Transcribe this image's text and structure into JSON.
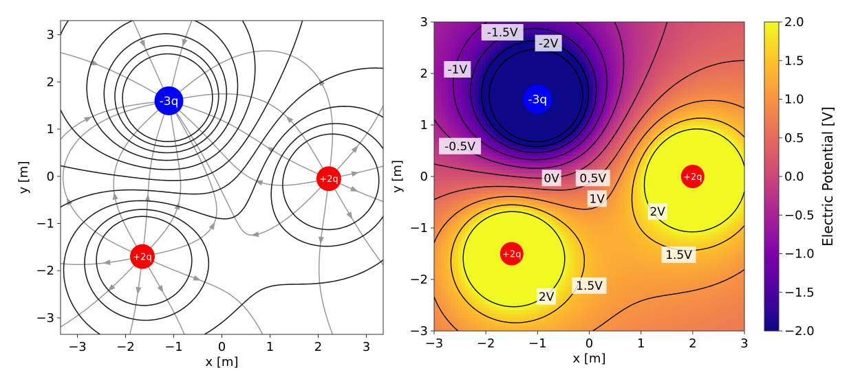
{
  "chart_data": [
    {
      "type": "streamplot+contour",
      "xlabel": "x [m]",
      "ylabel": "y [m]",
      "xlim": [
        -3.35,
        3.35
      ],
      "ylim": [
        -3.35,
        3.3
      ],
      "xticks": [
        -3,
        -2,
        -1,
        0,
        1,
        2,
        3
      ],
      "yticks": [
        -3,
        -2,
        -1,
        0,
        1,
        2,
        3
      ],
      "xtick_labels": [
        "−3",
        "−2",
        "−1",
        "0",
        "1",
        "2",
        "3"
      ],
      "ytick_labels": [
        "−3",
        "−2",
        "−1",
        "0",
        "1",
        "2",
        "3"
      ],
      "charges": [
        {
          "label": "-3q",
          "q": -3,
          "x": -1.1,
          "y": 1.6,
          "color": "#0000ff"
        },
        {
          "label": "+2q",
          "q": 2,
          "x": 2.22,
          "y": -0.05,
          "color": "#ff0000"
        },
        {
          "label": "+2q",
          "q": 2,
          "x": -1.65,
          "y": -1.7,
          "color": "#ff0000"
        }
      ],
      "contour_levels": [
        -2.5,
        -2,
        -1.5,
        -1,
        -0.5,
        0,
        0.5,
        1,
        1.5,
        2
      ],
      "contour_color": "#222222",
      "field_line_color": "#999999"
    },
    {
      "type": "heatmap+contour",
      "xlabel": "x [m]",
      "ylabel": "y [m]",
      "xlim": [
        -3,
        3
      ],
      "ylim": [
        -3,
        3
      ],
      "xticks": [
        -3,
        -2,
        -1,
        0,
        1,
        2,
        3
      ],
      "yticks": [
        -3,
        -2,
        -1,
        0,
        1,
        2,
        3
      ],
      "xtick_labels": [
        "−3",
        "−2",
        "−1",
        "0",
        "1",
        "2",
        "3"
      ],
      "ytick_labels": [
        "−3",
        "−2",
        "−1",
        "0",
        "1",
        "2",
        "3"
      ],
      "colormap": "plasma",
      "charges": [
        {
          "label": "-3q",
          "q": -3,
          "x": -1.0,
          "y": 1.5,
          "color": "#0000ff"
        },
        {
          "label": "+2q",
          "q": 2,
          "x": 2.0,
          "y": 0.0,
          "color": "#ff0000"
        },
        {
          "label": "+2q",
          "q": 2,
          "x": -1.5,
          "y": -1.5,
          "color": "#ff0000"
        }
      ],
      "contour_levels": [
        -2.5,
        -2,
        -1.5,
        -1,
        -0.5,
        0,
        0.5,
        1,
        1.5,
        2
      ],
      "contour_labels": [
        {
          "text": "-1.5V",
          "x": -1.68,
          "y": 2.8
        },
        {
          "text": "-2V",
          "x": -0.79,
          "y": 2.59
        },
        {
          "text": "-1V",
          "x": -2.55,
          "y": 2.08
        },
        {
          "text": "-0.5V",
          "x": -2.5,
          "y": 0.59
        },
        {
          "text": "0V",
          "x": -0.73,
          "y": -0.03
        },
        {
          "text": "0.5V",
          "x": 0.07,
          "y": -0.03
        },
        {
          "text": "1V",
          "x": 0.15,
          "y": -0.43
        },
        {
          "text": "2V",
          "x": 1.32,
          "y": -0.68
        },
        {
          "text": "1.5V",
          "x": 1.73,
          "y": -1.52
        },
        {
          "text": "1.5V",
          "x": 0.0,
          "y": -2.12
        },
        {
          "text": "2V",
          "x": -0.83,
          "y": -2.33
        }
      ],
      "colorbar": {
        "label": "Electric Potential [V]",
        "range": [
          -2.0,
          2.0
        ],
        "ticks": [
          2.0,
          1.5,
          1.0,
          0.5,
          0.0,
          -0.5,
          -1.0,
          -1.5,
          -2.0
        ],
        "tick_labels": [
          "2.0",
          "1.5",
          "1.0",
          "0.5",
          "0.0",
          "−0.5",
          "−1.0",
          "−1.5",
          "−2.0"
        ]
      }
    }
  ]
}
